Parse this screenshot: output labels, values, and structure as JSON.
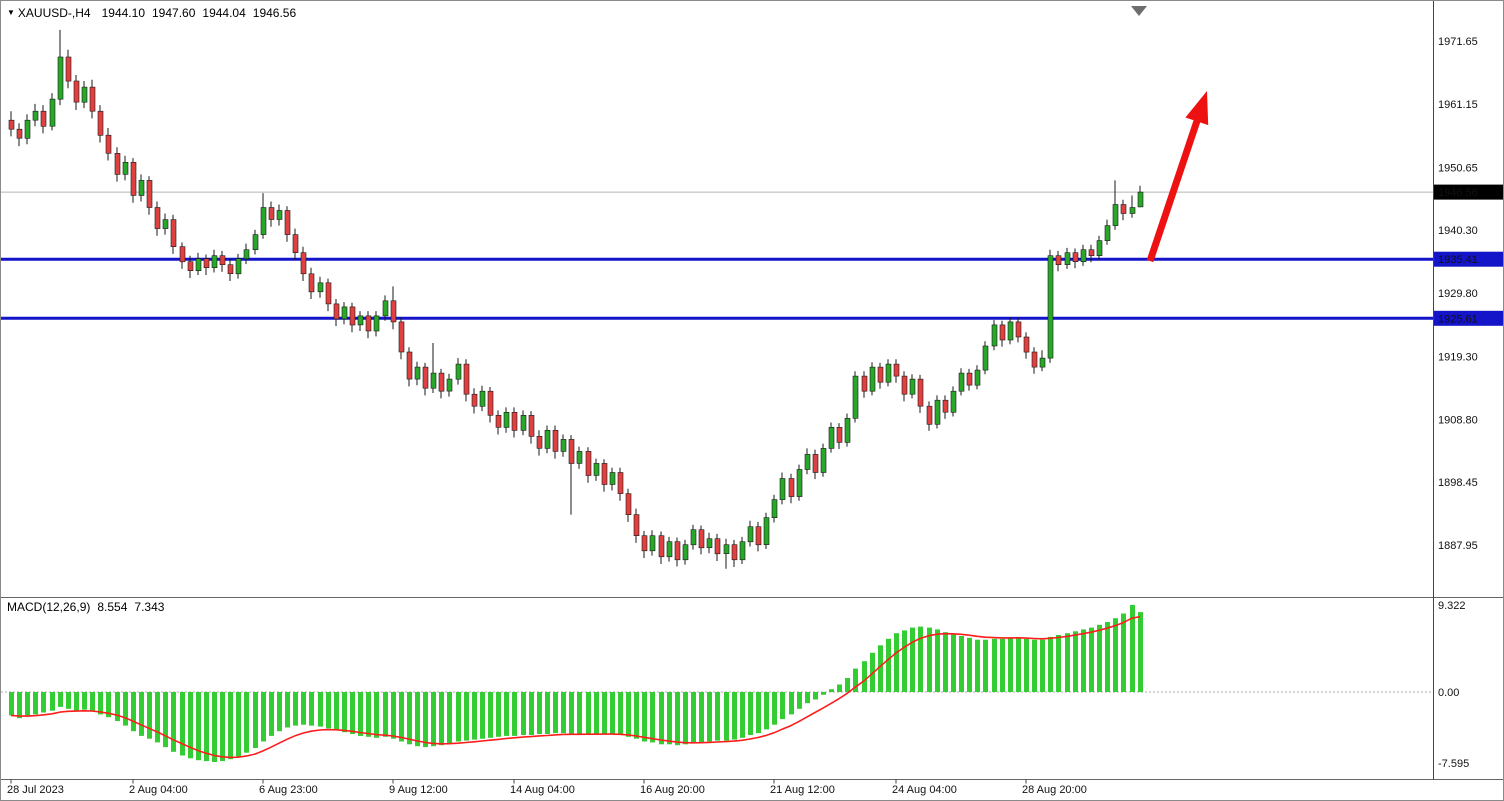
{
  "header": {
    "symbol": "XAUUSD-,H4",
    "open": "1944.10",
    "high": "1947.60",
    "low": "1944.04",
    "close": "1946.56"
  },
  "macd_label": {
    "name": "MACD(12,26,9)",
    "main_value": "8.554",
    "signal_value": "7.343"
  },
  "colors": {
    "bull": "#28A828",
    "bear": "#E04040",
    "wick": "#1a1a1a",
    "histogram": "#33CC33",
    "signal": "#FF1C1C",
    "level": "#1414C8",
    "arrow": "#EE1111",
    "price_box_bg": "#000000",
    "price_box_text": "#ffffff",
    "bid_line": "#b5b5b5"
  },
  "annotations": {
    "trend_arrow": {
      "direction": "up-right",
      "color": "#EE1111"
    },
    "shift_marker": {
      "shape": "down-triangle",
      "color": "#6e6e6e"
    }
  },
  "chart_data": [
    {
      "type": "candlestick",
      "title": "XAUUSD- H4",
      "ylim": [
        1884,
        1975
      ],
      "y_ticks": [
        1971.65,
        1961.15,
        1950.65,
        1940.3,
        1929.8,
        1919.3,
        1908.8,
        1898.45,
        1887.95
      ],
      "current": {
        "price": 1946.56,
        "label": "1946.56"
      },
      "levels": [
        {
          "price": 1935.41,
          "label": "1935.41"
        },
        {
          "price": 1925.61,
          "label": "1925.61"
        }
      ],
      "x_ticks": [
        {
          "index": 0,
          "label": "28 Jul 2023"
        },
        {
          "index": 15,
          "label": "2 Aug 04:00"
        },
        {
          "index": 31,
          "label": "6 Aug 23:00"
        },
        {
          "index": 47,
          "label": "9 Aug 12:00"
        },
        {
          "index": 62,
          "label": "14 Aug 04:00"
        },
        {
          "index": 78,
          "label": "16 Aug 20:00"
        },
        {
          "index": 94,
          "label": "21 Aug 12:00"
        },
        {
          "index": 109,
          "label": "24 Aug 04:00"
        },
        {
          "index": 125,
          "label": "28 Aug 20:00"
        }
      ],
      "candles": [
        [
          1958.5,
          1960.0,
          1955.8,
          1957.0
        ],
        [
          1957.0,
          1958.0,
          1954.2,
          1955.5
        ],
        [
          1955.5,
          1959.5,
          1954.5,
          1958.5
        ],
        [
          1958.5,
          1961.2,
          1957.5,
          1960.0
        ],
        [
          1960.0,
          1961.0,
          1956.3,
          1957.5
        ],
        [
          1957.5,
          1963.0,
          1956.8,
          1962.0
        ],
        [
          1962.0,
          1973.5,
          1961.0,
          1969.0
        ],
        [
          1969.0,
          1970.2,
          1963.8,
          1965.0
        ],
        [
          1965.0,
          1966.0,
          1960.2,
          1961.5
        ],
        [
          1961.5,
          1965.0,
          1960.5,
          1964.0
        ],
        [
          1964.0,
          1965.2,
          1958.8,
          1960.0
        ],
        [
          1960.0,
          1961.0,
          1954.8,
          1956.0
        ],
        [
          1956.0,
          1957.2,
          1951.8,
          1953.0
        ],
        [
          1953.0,
          1954.0,
          1948.3,
          1949.5
        ],
        [
          1949.5,
          1952.6,
          1948.5,
          1951.5
        ],
        [
          1951.5,
          1952.2,
          1944.8,
          1946.0
        ],
        [
          1946.0,
          1949.5,
          1945.0,
          1948.5
        ],
        [
          1948.5,
          1949.2,
          1942.8,
          1944.0
        ],
        [
          1944.0,
          1945.0,
          1939.3,
          1940.5
        ],
        [
          1940.5,
          1943.0,
          1939.5,
          1942.0
        ],
        [
          1942.0,
          1942.8,
          1936.3,
          1937.5
        ],
        [
          1937.5,
          1938.2,
          1933.8,
          1935.0
        ],
        [
          1935.0,
          1936.0,
          1932.3,
          1933.5
        ],
        [
          1933.5,
          1936.5,
          1932.8,
          1935.5
        ],
        [
          1935.5,
          1936.2,
          1932.8,
          1934.0
        ],
        [
          1934.0,
          1937.0,
          1933.2,
          1936.0
        ],
        [
          1936.0,
          1936.8,
          1933.3,
          1934.5
        ],
        [
          1934.5,
          1935.5,
          1931.8,
          1933.0
        ],
        [
          1933.0,
          1936.3,
          1932.2,
          1935.5
        ],
        [
          1935.5,
          1938.0,
          1934.6,
          1937.0
        ],
        [
          1937.0,
          1940.3,
          1936.2,
          1939.5
        ],
        [
          1939.5,
          1946.4,
          1938.8,
          1944.0
        ],
        [
          1944.0,
          1945.0,
          1940.8,
          1942.0
        ],
        [
          1942.0,
          1944.5,
          1941.0,
          1943.5
        ],
        [
          1943.5,
          1944.2,
          1938.3,
          1939.5
        ],
        [
          1939.5,
          1940.5,
          1935.3,
          1936.5
        ],
        [
          1936.5,
          1937.5,
          1931.8,
          1933.0
        ],
        [
          1933.0,
          1934.0,
          1928.8,
          1930.0
        ],
        [
          1930.0,
          1932.5,
          1929.0,
          1931.5
        ],
        [
          1931.5,
          1932.2,
          1926.8,
          1928.0
        ],
        [
          1928.0,
          1928.8,
          1924.3,
          1925.5
        ],
        [
          1925.5,
          1928.3,
          1924.6,
          1927.5
        ],
        [
          1927.5,
          1928.2,
          1923.3,
          1924.5
        ],
        [
          1924.5,
          1926.8,
          1923.5,
          1926.0
        ],
        [
          1926.0,
          1926.8,
          1922.3,
          1923.5
        ],
        [
          1923.5,
          1926.8,
          1922.6,
          1926.0
        ],
        [
          1926.0,
          1929.4,
          1925.2,
          1928.5
        ],
        [
          1928.5,
          1930.9,
          1923.8,
          1925.0
        ],
        [
          1925.0,
          1925.8,
          1918.8,
          1920.0
        ],
        [
          1920.0,
          1920.8,
          1914.3,
          1915.5
        ],
        [
          1915.5,
          1918.4,
          1914.5,
          1917.5
        ],
        [
          1917.5,
          1918.2,
          1912.8,
          1914.0
        ],
        [
          1914.0,
          1921.5,
          1913.2,
          1916.5
        ],
        [
          1916.5,
          1917.2,
          1912.3,
          1913.5
        ],
        [
          1913.5,
          1916.4,
          1912.6,
          1915.5
        ],
        [
          1915.5,
          1919.0,
          1914.6,
          1918.0
        ],
        [
          1918.0,
          1918.8,
          1911.8,
          1913.0
        ],
        [
          1913.0,
          1914.0,
          1909.8,
          1911.0
        ],
        [
          1911.0,
          1914.4,
          1910.2,
          1913.5
        ],
        [
          1913.5,
          1914.2,
          1908.3,
          1909.5
        ],
        [
          1909.5,
          1910.3,
          1906.3,
          1907.5
        ],
        [
          1907.5,
          1910.8,
          1906.6,
          1910.0
        ],
        [
          1910.0,
          1910.8,
          1905.8,
          1907.0
        ],
        [
          1907.0,
          1910.3,
          1906.2,
          1909.5
        ],
        [
          1909.5,
          1910.2,
          1904.8,
          1906.0
        ],
        [
          1906.0,
          1907.0,
          1902.8,
          1904.0
        ],
        [
          1904.0,
          1907.8,
          1903.2,
          1907.0
        ],
        [
          1907.0,
          1907.8,
          1902.3,
          1903.5
        ],
        [
          1903.5,
          1906.3,
          1902.6,
          1905.5
        ],
        [
          1905.5,
          1906.2,
          1893.0,
          1901.5
        ],
        [
          1901.5,
          1904.3,
          1900.6,
          1903.5
        ],
        [
          1903.5,
          1904.2,
          1898.3,
          1899.5
        ],
        [
          1899.5,
          1902.3,
          1898.6,
          1901.5
        ],
        [
          1901.5,
          1902.2,
          1896.8,
          1898.0
        ],
        [
          1898.0,
          1900.8,
          1897.0,
          1900.0
        ],
        [
          1900.0,
          1900.8,
          1895.3,
          1896.5
        ],
        [
          1896.5,
          1897.3,
          1891.8,
          1893.0
        ],
        [
          1893.0,
          1894.0,
          1888.3,
          1889.5
        ],
        [
          1889.5,
          1890.3,
          1885.8,
          1887.0
        ],
        [
          1887.0,
          1890.4,
          1886.2,
          1889.5
        ],
        [
          1889.5,
          1890.2,
          1884.8,
          1886.0
        ],
        [
          1886.0,
          1889.3,
          1885.2,
          1888.5
        ],
        [
          1888.5,
          1889.2,
          1884.4,
          1885.5
        ],
        [
          1885.5,
          1888.8,
          1884.7,
          1888.0
        ],
        [
          1888.0,
          1891.3,
          1887.2,
          1890.5
        ],
        [
          1890.5,
          1891.2,
          1886.4,
          1887.5
        ],
        [
          1887.5,
          1890.0,
          1886.6,
          1889.0
        ],
        [
          1889.0,
          1889.8,
          1885.3,
          1886.5
        ],
        [
          1886.5,
          1889.0,
          1884.0,
          1888.0
        ],
        [
          1888.0,
          1888.8,
          1884.3,
          1885.5
        ],
        [
          1885.5,
          1889.3,
          1884.8,
          1888.5
        ],
        [
          1888.5,
          1892.0,
          1887.7,
          1891.0
        ],
        [
          1891.0,
          1891.8,
          1886.9,
          1888.0
        ],
        [
          1888.0,
          1893.3,
          1887.3,
          1892.5
        ],
        [
          1892.5,
          1896.3,
          1891.7,
          1895.5
        ],
        [
          1895.5,
          1900.0,
          1894.7,
          1899.0
        ],
        [
          1899.0,
          1899.8,
          1894.9,
          1896.0
        ],
        [
          1896.0,
          1901.3,
          1895.3,
          1900.5
        ],
        [
          1900.5,
          1904.0,
          1899.7,
          1903.0
        ],
        [
          1903.0,
          1903.8,
          1898.9,
          1900.0
        ],
        [
          1900.0,
          1904.8,
          1899.3,
          1904.0
        ],
        [
          1904.0,
          1908.3,
          1903.3,
          1907.5
        ],
        [
          1907.5,
          1908.2,
          1903.9,
          1905.0
        ],
        [
          1905.0,
          1909.8,
          1904.3,
          1909.0
        ],
        [
          1909.0,
          1916.8,
          1908.3,
          1916.0
        ],
        [
          1916.0,
          1916.8,
          1912.4,
          1913.5
        ],
        [
          1913.5,
          1918.3,
          1912.8,
          1917.5
        ],
        [
          1917.5,
          1918.2,
          1913.9,
          1915.0
        ],
        [
          1915.0,
          1918.8,
          1914.3,
          1918.0
        ],
        [
          1918.0,
          1918.8,
          1914.9,
          1916.0
        ],
        [
          1916.0,
          1916.8,
          1911.8,
          1913.0
        ],
        [
          1913.0,
          1916.3,
          1912.3,
          1915.5
        ],
        [
          1915.5,
          1916.2,
          1909.9,
          1911.0
        ],
        [
          1911.0,
          1911.8,
          1906.9,
          1908.0
        ],
        [
          1908.0,
          1912.8,
          1907.3,
          1912.0
        ],
        [
          1912.0,
          1912.8,
          1908.9,
          1910.0
        ],
        [
          1910.0,
          1914.3,
          1909.3,
          1913.5
        ],
        [
          1913.5,
          1917.3,
          1912.8,
          1916.5
        ],
        [
          1916.5,
          1917.2,
          1913.6,
          1914.5
        ],
        [
          1914.5,
          1917.8,
          1913.8,
          1917.0
        ],
        [
          1917.0,
          1921.8,
          1916.3,
          1921.0
        ],
        [
          1921.0,
          1925.3,
          1920.3,
          1924.5
        ],
        [
          1924.5,
          1925.2,
          1920.9,
          1922.0
        ],
        [
          1922.0,
          1925.8,
          1921.3,
          1925.0
        ],
        [
          1925.0,
          1925.7,
          1921.6,
          1922.5
        ],
        [
          1922.5,
          1923.3,
          1918.9,
          1920.0
        ],
        [
          1920.0,
          1920.8,
          1916.4,
          1917.5
        ],
        [
          1917.5,
          1920.3,
          1916.8,
          1919.0
        ],
        [
          1919.0,
          1937.0,
          1918.2,
          1936.0
        ],
        [
          1936.0,
          1936.8,
          1933.4,
          1934.5
        ],
        [
          1934.5,
          1937.3,
          1933.8,
          1936.5
        ],
        [
          1936.5,
          1937.2,
          1933.9,
          1935.0
        ],
        [
          1935.0,
          1937.8,
          1934.3,
          1937.0
        ],
        [
          1937.0,
          1937.8,
          1934.9,
          1936.0
        ],
        [
          1936.0,
          1939.3,
          1935.3,
          1938.5
        ],
        [
          1938.5,
          1942.0,
          1937.8,
          1941.0
        ],
        [
          1941.0,
          1948.5,
          1940.3,
          1944.5
        ],
        [
          1944.5,
          1945.3,
          1941.9,
          1943.0
        ],
        [
          1943.0,
          1946.0,
          1942.3,
          1944.0
        ],
        [
          1944.1,
          1947.6,
          1944.04,
          1946.56
        ]
      ]
    },
    {
      "type": "bar",
      "title": "MACD(12,26,9)",
      "ylim": [
        -7.595,
        9.322
      ],
      "y_ticks": [
        {
          "value": 9.322,
          "label": "9.322"
        },
        {
          "value": 0,
          "label": "0.00"
        },
        {
          "value": -7.595,
          "label": "-7.595"
        }
      ],
      "values": {
        "main": 8.554,
        "signal": 7.343
      },
      "histogram": [
        -2.5,
        -2.8,
        -2.6,
        -2.4,
        -2.2,
        -2.0,
        -1.6,
        -1.8,
        -2.0,
        -1.9,
        -2.1,
        -2.4,
        -2.7,
        -3.1,
        -3.6,
        -4.2,
        -4.7,
        -5.0,
        -5.4,
        -5.9,
        -6.4,
        -6.8,
        -7.1,
        -7.3,
        -7.4,
        -7.5,
        -7.4,
        -7.2,
        -6.9,
        -6.5,
        -6.0,
        -5.3,
        -4.7,
        -4.2,
        -3.8,
        -3.6,
        -3.5,
        -3.6,
        -3.7,
        -3.9,
        -4.1,
        -4.3,
        -4.5,
        -4.7,
        -4.8,
        -4.9,
        -4.8,
        -5.0,
        -5.3,
        -5.6,
        -5.8,
        -5.9,
        -5.8,
        -5.7,
        -5.5,
        -5.3,
        -5.2,
        -5.1,
        -5.0,
        -4.9,
        -4.8,
        -4.7,
        -4.7,
        -4.6,
        -4.6,
        -4.5,
        -4.5,
        -4.4,
        -4.4,
        -4.5,
        -4.5,
        -4.5,
        -4.5,
        -4.5,
        -4.5,
        -4.6,
        -4.8,
        -5.0,
        -5.3,
        -5.4,
        -5.6,
        -5.6,
        -5.7,
        -5.6,
        -5.5,
        -5.4,
        -5.3,
        -5.2,
        -5.2,
        -5.1,
        -4.9,
        -4.6,
        -4.4,
        -4.0,
        -3.5,
        -2.9,
        -2.4,
        -1.8,
        -1.2,
        -0.8,
        -0.3,
        0.3,
        0.8,
        1.5,
        2.5,
        3.3,
        4.2,
        5.0,
        5.7,
        6.3,
        6.6,
        6.9,
        7.0,
        6.9,
        6.7,
        6.4,
        6.2,
        6.0,
        5.8,
        5.6,
        5.6,
        5.7,
        5.7,
        5.8,
        5.8,
        5.7,
        5.6,
        5.6,
        5.9,
        6.1,
        6.3,
        6.5,
        6.7,
        6.9,
        7.2,
        7.5,
        7.9,
        8.4,
        9.322,
        8.554
      ],
      "signal": {
        "method": "ema",
        "alpha": 0.25,
        "current": 7.343
      }
    }
  ]
}
